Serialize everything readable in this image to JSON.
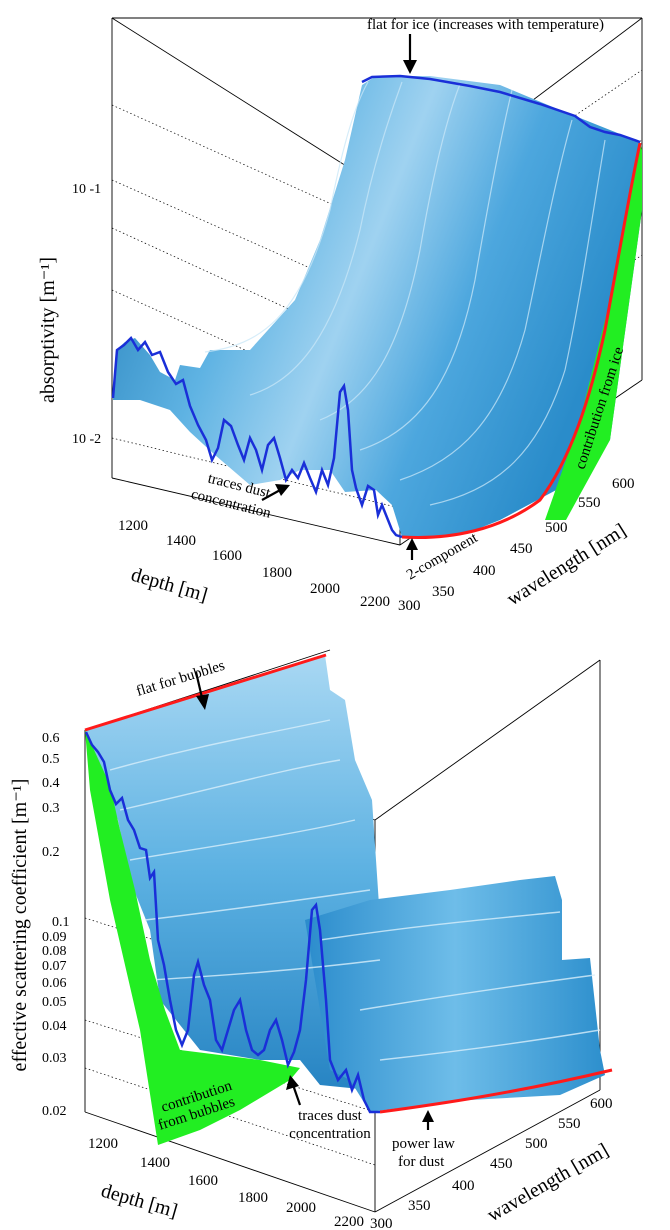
{
  "chart_data": [
    {
      "type": "surface",
      "zlabel": "absorptivity [m⁻¹]",
      "xlabel": "depth [m]",
      "ylabel": "wavelength [nm]",
      "x_ticks": [
        "1200",
        "1400",
        "1600",
        "1800",
        "2000",
        "2200"
      ],
      "y_ticks": [
        "300",
        "350",
        "400",
        "450",
        "500",
        "550",
        "600"
      ],
      "z_ticks": [
        "10 -2",
        "10 -1"
      ],
      "z_scale": "log",
      "annotations": {
        "top": "flat for ice (increases with temperature)",
        "ice": "contribution from ice",
        "dust": [
          "traces dust",
          "concentration"
        ],
        "model": "2-component"
      },
      "depth_profile": {
        "depth": [
          1100,
          1150,
          1200,
          1250,
          1300,
          1350,
          1400,
          1450,
          1500,
          1550,
          1600,
          1650,
          1700,
          1750,
          1800,
          1850,
          1900,
          1950,
          2000,
          2050,
          2100,
          2150,
          2200,
          2250
        ],
        "absorptivity_300nm": [
          0.0135,
          0.0175,
          0.0165,
          0.0145,
          0.0125,
          0.0115,
          0.0105,
          0.0098,
          0.0092,
          0.009,
          0.0095,
          0.011,
          0.0095,
          0.0088,
          0.0092,
          0.0108,
          0.014,
          0.022,
          0.016,
          0.0085,
          0.0078,
          0.0072,
          0.007,
          0.007
        ]
      },
      "wavelength_profile": {
        "wavelength": [
          300,
          350,
          400,
          450,
          500,
          550,
          600
        ],
        "absorptivity": [
          0.0072,
          0.008,
          0.011,
          0.018,
          0.04,
          0.085,
          0.15
        ]
      }
    },
    {
      "type": "surface",
      "zlabel": "effective scattering coefficient [m⁻¹]",
      "xlabel": "depth [m]",
      "ylabel": "wavelength [nm]",
      "x_ticks": [
        "1200",
        "1400",
        "1600",
        "1800",
        "2000",
        "2200"
      ],
      "y_ticks": [
        "300",
        "350",
        "400",
        "450",
        "500",
        "550",
        "600"
      ],
      "z_ticks": [
        "0.02",
        "0.03",
        "0.04",
        "0.05",
        "0.06",
        "0.07",
        "0.08",
        "0.09",
        "0.1",
        "0.2",
        "0.3",
        "0.4",
        "0.5",
        "0.6"
      ],
      "z_scale": "log",
      "annotations": {
        "top": "flat for bubbles",
        "bubbles": [
          "contribution",
          "from bubbles"
        ],
        "dust": [
          "traces dust",
          "concentration"
        ],
        "power": [
          "power law",
          "for dust"
        ]
      },
      "depth_profile": {
        "depth": [
          1100,
          1150,
          1200,
          1250,
          1300,
          1350,
          1400,
          1450,
          1500,
          1550,
          1600,
          1650,
          1700,
          1750,
          1800,
          1850,
          1900,
          1950,
          2000,
          2050,
          2100,
          2150,
          2200,
          2250
        ],
        "scattering_300nm": [
          0.5,
          0.35,
          0.32,
          0.22,
          0.12,
          0.075,
          0.05,
          0.04,
          0.055,
          0.042,
          0.035,
          0.045,
          0.038,
          0.032,
          0.036,
          0.045,
          0.065,
          0.11,
          0.06,
          0.028,
          0.022,
          0.02,
          0.018,
          0.017
        ]
      },
      "wavelength_profile": {
        "wavelength": [
          300,
          350,
          400,
          450,
          500,
          550,
          600
        ],
        "scattering_dust_power_law": [
          0.017,
          0.0175,
          0.018,
          0.0185,
          0.019,
          0.0195,
          0.02
        ]
      }
    }
  ]
}
